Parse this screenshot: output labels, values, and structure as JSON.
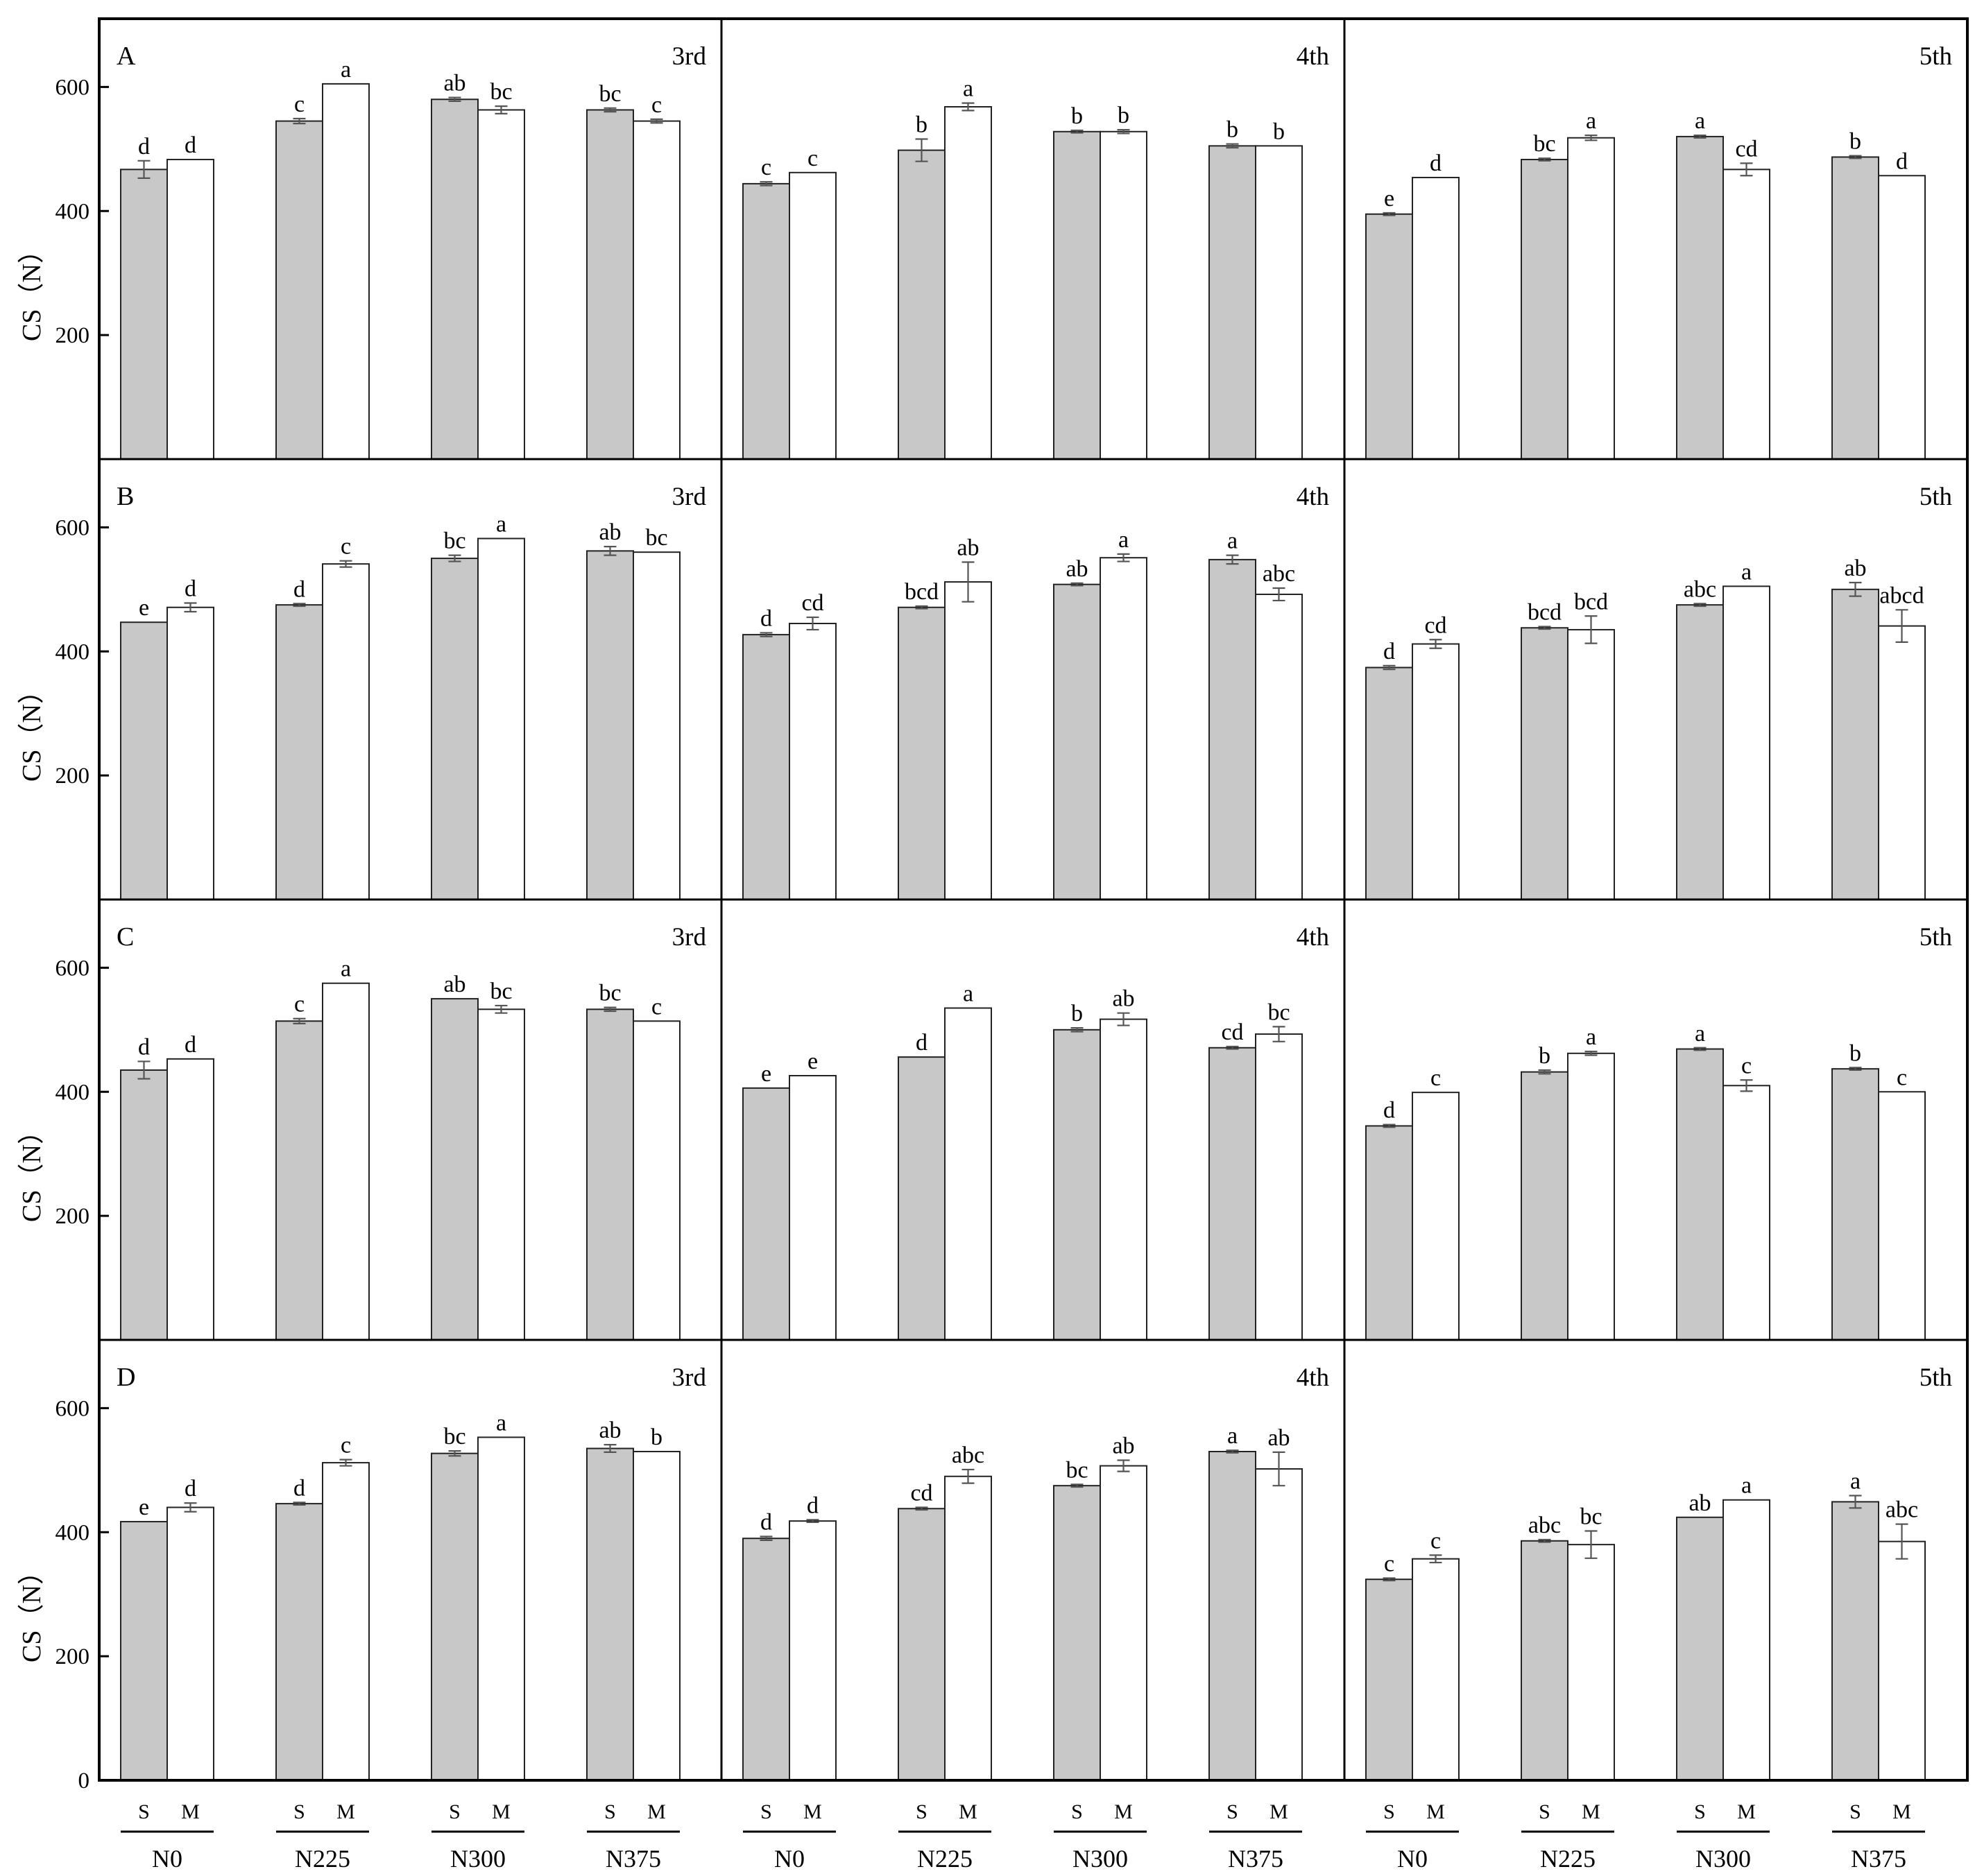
{
  "chart_data": {
    "type": "bar",
    "ylabel": "CS（N）",
    "ylim": [
      0,
      710
    ],
    "yticks": [
      200,
      400,
      600
    ],
    "bottom_ytick": "0",
    "groups": [
      "N0",
      "N225",
      "N300",
      "N375"
    ],
    "subgroups": [
      "S",
      "M"
    ],
    "columns": [
      "3rd",
      "4th",
      "5th"
    ],
    "colors": {
      "S": "#c8c8c8",
      "M": "#ffffff"
    },
    "rows": [
      {
        "label": "A",
        "panels": [
          {
            "stage": "3rd",
            "S": {
              "values": [
                467,
                545,
                580,
                563
              ],
              "err": [
                14,
                4,
                3,
                3
              ],
              "letters": [
                "d",
                "c",
                "ab",
                "bc"
              ]
            },
            "M": {
              "values": [
                483,
                605,
                563,
                545
              ],
              "err": [
                0,
                0,
                6,
                3
              ],
              "letters": [
                "d",
                "a",
                "bc",
                "c"
              ]
            }
          },
          {
            "stage": "4th",
            "S": {
              "values": [
                444,
                498,
                528,
                505
              ],
              "err": [
                3,
                18,
                2,
                3
              ],
              "letters": [
                "c",
                "b",
                "b",
                "b"
              ]
            },
            "M": {
              "values": [
                462,
                568,
                528,
                505
              ],
              "err": [
                0,
                6,
                3,
                0
              ],
              "letters": [
                "c",
                "a",
                "b",
                "b"
              ]
            }
          },
          {
            "stage": "5th",
            "S": {
              "values": [
                395,
                483,
                520,
                487
              ],
              "err": [
                2,
                2,
                2,
                2
              ],
              "letters": [
                "e",
                "bc",
                "a",
                "b"
              ]
            },
            "M": {
              "values": [
                454,
                518,
                467,
                457
              ],
              "err": [
                0,
                4,
                10,
                0
              ],
              "letters": [
                "d",
                "a",
                "cd",
                "d"
              ]
            }
          }
        ]
      },
      {
        "label": "B",
        "panels": [
          {
            "stage": "3rd",
            "S": {
              "values": [
                447,
                475,
                550,
                562
              ],
              "err": [
                0,
                2,
                5,
                7
              ],
              "letters": [
                "e",
                "d",
                "bc",
                "ab"
              ]
            },
            "M": {
              "values": [
                471,
                541,
                582,
                560
              ],
              "err": [
                7,
                5,
                0,
                0
              ],
              "letters": [
                "d",
                "c",
                "a",
                "bc"
              ]
            }
          },
          {
            "stage": "4th",
            "S": {
              "values": [
                427,
                471,
                508,
                548
              ],
              "err": [
                3,
                2,
                2,
                7
              ],
              "letters": [
                "d",
                "bcd",
                "ab",
                "a"
              ]
            },
            "M": {
              "values": [
                445,
                512,
                551,
                492
              ],
              "err": [
                10,
                32,
                6,
                10
              ],
              "letters": [
                "cd",
                "ab",
                "a",
                "abc"
              ]
            }
          },
          {
            "stage": "5th",
            "S": {
              "values": [
                374,
                438,
                475,
                500
              ],
              "err": [
                3,
                2,
                2,
                11
              ],
              "letters": [
                "d",
                "bcd",
                "abc",
                "ab"
              ]
            },
            "M": {
              "values": [
                412,
                435,
                505,
                441
              ],
              "err": [
                7,
                22,
                0,
                26
              ],
              "letters": [
                "cd",
                "bcd",
                "a",
                "abcd"
              ]
            }
          }
        ]
      },
      {
        "label": "C",
        "panels": [
          {
            "stage": "3rd",
            "S": {
              "values": [
                435,
                514,
                550,
                533
              ],
              "err": [
                14,
                4,
                0,
                3
              ],
              "letters": [
                "d",
                "c",
                "ab",
                "bc"
              ]
            },
            "M": {
              "values": [
                453,
                575,
                533,
                514
              ],
              "err": [
                0,
                0,
                6,
                0
              ],
              "letters": [
                "d",
                "a",
                "bc",
                "c"
              ]
            }
          },
          {
            "stage": "4th",
            "S": {
              "values": [
                406,
                456,
                500,
                471
              ],
              "err": [
                0,
                0,
                3,
                2
              ],
              "letters": [
                "e",
                "d",
                "b",
                "cd"
              ]
            },
            "M": {
              "values": [
                426,
                535,
                517,
                493
              ],
              "err": [
                0,
                0,
                10,
                12
              ],
              "letters": [
                "e",
                "a",
                "ab",
                "bc"
              ]
            }
          },
          {
            "stage": "5th",
            "S": {
              "values": [
                345,
                432,
                469,
                437
              ],
              "err": [
                2,
                3,
                2,
                2
              ],
              "letters": [
                "d",
                "b",
                "a",
                "b"
              ]
            },
            "M": {
              "values": [
                399,
                462,
                410,
                400
              ],
              "err": [
                0,
                3,
                9,
                0
              ],
              "letters": [
                "c",
                "a",
                "c",
                "c"
              ]
            }
          }
        ]
      },
      {
        "label": "D",
        "panels": [
          {
            "stage": "3rd",
            "S": {
              "values": [
                417,
                446,
                527,
                535
              ],
              "err": [
                0,
                2,
                4,
                6
              ],
              "letters": [
                "e",
                "d",
                "bc",
                "ab"
              ]
            },
            "M": {
              "values": [
                440,
                512,
                553,
                530
              ],
              "err": [
                7,
                5,
                0,
                0
              ],
              "letters": [
                "d",
                "c",
                "a",
                "b"
              ]
            }
          },
          {
            "stage": "4th",
            "S": {
              "values": [
                390,
                438,
                475,
                530
              ],
              "err": [
                3,
                2,
                2,
                2
              ],
              "letters": [
                "d",
                "cd",
                "bc",
                "a"
              ]
            },
            "M": {
              "values": [
                418,
                490,
                507,
                502
              ],
              "err": [
                2,
                11,
                9,
                27
              ],
              "letters": [
                "d",
                "abc",
                "ab",
                "ab"
              ]
            }
          },
          {
            "stage": "5th",
            "S": {
              "values": [
                324,
                386,
                424,
                449
              ],
              "err": [
                2,
                2,
                0,
                10
              ],
              "letters": [
                "c",
                "abc",
                "ab",
                "a"
              ]
            },
            "M": {
              "values": [
                357,
                380,
                452,
                385
              ],
              "err": [
                6,
                22,
                0,
                28
              ],
              "letters": [
                "c",
                "bc",
                "a",
                "abc"
              ]
            }
          }
        ]
      }
    ]
  }
}
